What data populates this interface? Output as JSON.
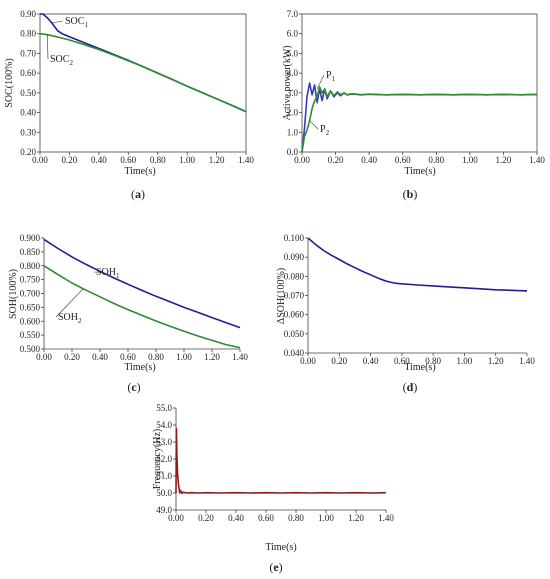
{
  "chart_data": [
    {
      "id": "a",
      "type": "line",
      "caption": "(a)",
      "xlabel": "Time(s)",
      "ylabel": "SOC(100%)",
      "xlim": [
        0,
        1.4
      ],
      "ylim": [
        0.2,
        0.9
      ],
      "xticks": [
        "0.00",
        "0.20",
        "0.40",
        "0.60",
        "0.80",
        "1.00",
        "1.20",
        "1.40"
      ],
      "yticks": [
        "0.20",
        "0.30",
        "0.40",
        "0.50",
        "0.60",
        "0.70",
        "0.80",
        "0.90"
      ],
      "series": [
        {
          "name": "SOC1",
          "label_base": "SOC",
          "label_sub": "1",
          "color": "#1f1f8f",
          "x": [
            0,
            0.02,
            0.05,
            0.08,
            0.1,
            0.12,
            0.15,
            0.2,
            0.3,
            0.4,
            0.5,
            0.6,
            0.7,
            0.8,
            0.9,
            1.0,
            1.1,
            1.2,
            1.3,
            1.4
          ],
          "y": [
            0.9,
            0.9,
            0.88,
            0.855,
            0.835,
            0.815,
            0.8,
            0.785,
            0.755,
            0.725,
            0.695,
            0.665,
            0.633,
            0.6,
            0.568,
            0.534,
            0.502,
            0.47,
            0.438,
            0.405
          ]
        },
        {
          "name": "SOC2",
          "label_base": "SOC",
          "label_sub": "2",
          "color": "#2e8b2e",
          "x": [
            0,
            0.05,
            0.1,
            0.15,
            0.2,
            0.3,
            0.4,
            0.5,
            0.6,
            0.7,
            0.8,
            0.9,
            1.0,
            1.1,
            1.2,
            1.3,
            1.4
          ],
          "y": [
            0.8,
            0.795,
            0.787,
            0.778,
            0.768,
            0.745,
            0.72,
            0.692,
            0.663,
            0.633,
            0.6,
            0.568,
            0.534,
            0.502,
            0.47,
            0.438,
            0.405
          ]
        }
      ]
    },
    {
      "id": "b",
      "type": "line",
      "caption": "(b)",
      "xlabel": "Time(s)",
      "ylabel": "Active power(kW)",
      "xlim": [
        0,
        1.4
      ],
      "ylim": [
        0,
        7
      ],
      "xticks": [
        "0.00",
        "0.20",
        "0.40",
        "0.60",
        "0.80",
        "1.00",
        "1.20",
        "1.40"
      ],
      "yticks": [
        "0.0",
        "1.0",
        "2.0",
        "3.0",
        "4.0",
        "5.0",
        "6.0",
        "7.0"
      ],
      "series": [
        {
          "name": "P1",
          "label_base": "P",
          "label_sub": "1",
          "color": "#3a3ab8",
          "x": [
            0,
            0.015,
            0.03,
            0.045,
            0.06,
            0.075,
            0.09,
            0.105,
            0.12,
            0.135,
            0.15,
            0.17,
            0.19,
            0.21,
            0.23,
            0.25,
            0.27,
            0.3,
            0.35,
            0.4,
            0.5,
            0.6,
            0.7,
            0.8,
            0.9,
            1.0,
            1.1,
            1.2,
            1.3,
            1.4
          ],
          "y": [
            0,
            1.2,
            2.8,
            3.5,
            2.9,
            3.4,
            2.5,
            3.2,
            2.6,
            3.2,
            2.7,
            3.1,
            2.8,
            3.0,
            2.85,
            3.0,
            2.9,
            2.95,
            2.9,
            2.93,
            2.9,
            2.92,
            2.9,
            2.92,
            2.9,
            2.92,
            2.9,
            2.92,
            2.9,
            2.92
          ]
        },
        {
          "name": "P2",
          "label_base": "P",
          "label_sub": "2",
          "color": "#2e8b2e",
          "x": [
            0,
            0.015,
            0.03,
            0.045,
            0.06,
            0.075,
            0.09,
            0.105,
            0.12,
            0.135,
            0.15,
            0.17,
            0.19,
            0.21,
            0.23,
            0.25,
            0.27,
            0.3,
            0.35,
            0.4,
            0.5,
            0.6,
            0.7,
            0.8,
            0.9,
            1.0,
            1.1,
            1.2,
            1.3,
            1.4
          ],
          "y": [
            0,
            0.8,
            1.1,
            1.6,
            2.2,
            2.6,
            2.8,
            3.3,
            3.0,
            3.2,
            2.8,
            3.1,
            2.85,
            3.05,
            2.9,
            3.0,
            2.9,
            2.95,
            2.9,
            2.93,
            2.9,
            2.92,
            2.9,
            2.92,
            2.9,
            2.92,
            2.9,
            2.92,
            2.9,
            2.92
          ]
        }
      ]
    },
    {
      "id": "c",
      "type": "line",
      "caption": "(c)",
      "xlabel": "Time(s)",
      "ylabel": "SOH(100%)",
      "xlim": [
        0,
        1.4
      ],
      "ylim": [
        0.5,
        0.9
      ],
      "xticks": [
        "0.00",
        "0.20",
        "0.40",
        "0.60",
        "0.80",
        "1.00",
        "1.20",
        "1.40"
      ],
      "yticks": [
        "0.500",
        "0.550",
        "0.600",
        "0.650",
        "0.700",
        "0.750",
        "0.800",
        "0.850",
        "0.900"
      ],
      "series": [
        {
          "name": "SOH1",
          "label_base": "SOH",
          "label_sub": "1",
          "color": "#1f1f8f",
          "x": [
            0,
            0.1,
            0.2,
            0.3,
            0.4,
            0.5,
            0.6,
            0.7,
            0.8,
            0.9,
            1.0,
            1.1,
            1.2,
            1.3,
            1.4
          ],
          "y": [
            0.895,
            0.862,
            0.832,
            0.805,
            0.78,
            0.756,
            0.733,
            0.711,
            0.69,
            0.67,
            0.65,
            0.632,
            0.613,
            0.595,
            0.577
          ]
        },
        {
          "name": "SOH2",
          "label_base": "SOH",
          "label_sub": "2",
          "color": "#2e8b2e",
          "x": [
            0,
            0.1,
            0.2,
            0.3,
            0.4,
            0.5,
            0.6,
            0.7,
            0.8,
            0.9,
            1.0,
            1.1,
            1.2,
            1.3,
            1.4
          ],
          "y": [
            0.8,
            0.768,
            0.738,
            0.712,
            0.688,
            0.664,
            0.642,
            0.621,
            0.601,
            0.582,
            0.564,
            0.547,
            0.531,
            0.516,
            0.505
          ]
        }
      ]
    },
    {
      "id": "d",
      "type": "line",
      "caption": "(d)",
      "xlabel": "Time(s)",
      "ylabel": "ΔSOH(100%)",
      "xlim": [
        0,
        1.4
      ],
      "ylim": [
        0.04,
        0.1
      ],
      "xticks": [
        "0.00",
        "0.20",
        "0.40",
        "0.60",
        "0.80",
        "1.00",
        "1.20",
        "1.40"
      ],
      "yticks": [
        "0.040",
        "0.050",
        "0.060",
        "0.070",
        "0.080",
        "0.090",
        "0.100"
      ],
      "series": [
        {
          "color": "#1f1f8f",
          "x": [
            0,
            0.05,
            0.1,
            0.15,
            0.2,
            0.25,
            0.3,
            0.35,
            0.4,
            0.45,
            0.5,
            0.55,
            0.58,
            0.7,
            0.8,
            0.9,
            1.0,
            1.1,
            1.2,
            1.3,
            1.4
          ],
          "y": [
            0.1,
            0.0965,
            0.0935,
            0.091,
            0.0888,
            0.0865,
            0.0845,
            0.0825,
            0.0808,
            0.079,
            0.0775,
            0.0765,
            0.0762,
            0.0755,
            0.075,
            0.0745,
            0.074,
            0.0735,
            0.073,
            0.0727,
            0.0724
          ]
        }
      ]
    },
    {
      "id": "e",
      "type": "line",
      "caption": "(e)",
      "xlabel": "Time(s)",
      "ylabel": "Frequency(Hz)",
      "xlim": [
        0,
        1.4
      ],
      "ylim": [
        49,
        55
      ],
      "xticks": [
        "0.00",
        "0.20",
        "0.40",
        "0.60",
        "0.80",
        "1.00",
        "1.20",
        "1.40"
      ],
      "yticks": [
        "49.0",
        "50.0",
        "51.0",
        "52.0",
        "53.0",
        "54.0",
        "55.0"
      ],
      "series": [
        {
          "color": "#8b1a1a",
          "x": [
            0,
            0.003,
            0.006,
            0.01,
            0.015,
            0.02,
            0.025,
            0.03,
            0.04,
            0.05,
            0.07,
            0.1,
            0.15,
            0.2,
            0.3,
            0.4,
            0.5,
            0.6,
            0.7,
            0.8,
            0.9,
            1.0,
            1.1,
            1.2,
            1.3,
            1.4
          ],
          "y": [
            50,
            53.8,
            52.2,
            51.2,
            50.6,
            50.3,
            50.0,
            50.15,
            49.98,
            50.05,
            50.0,
            50.02,
            50.0,
            50.02,
            50.0,
            50.02,
            50.0,
            50.02,
            50.0,
            50.02,
            50.0,
            50.02,
            50.0,
            50.02,
            50.0,
            50.02
          ]
        }
      ]
    }
  ]
}
